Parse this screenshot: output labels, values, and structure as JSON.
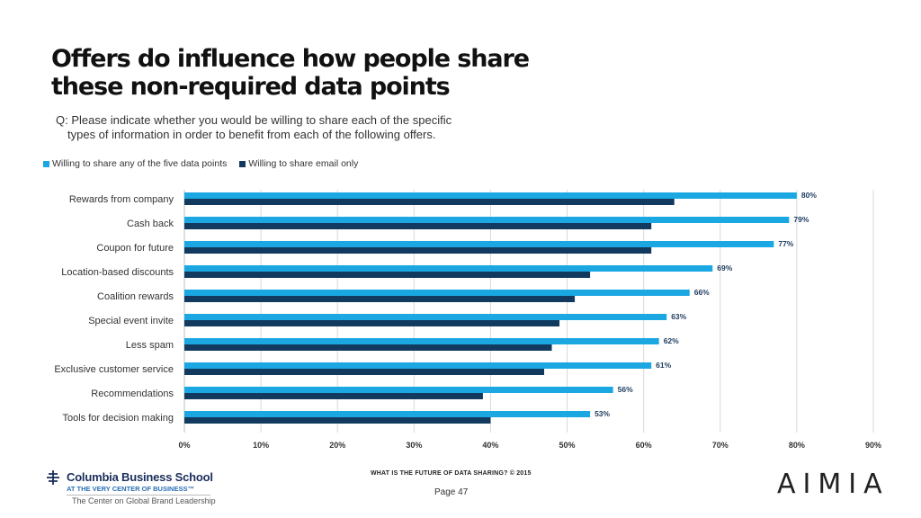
{
  "page": {
    "title_line1": "Offers do influence how people share",
    "title_line2": "these non-required data points",
    "question_line1": "Q: Please indicate whether you would be willing to share each of the specific",
    "question_line2": "types of information in order to benefit from each of the following offers."
  },
  "legend": {
    "series1": "Willing to share any of the five data points",
    "series2": "Willing to share email only"
  },
  "colors": {
    "series1": "#1ba7e2",
    "series2": "#123a5e",
    "label": "#1e3a5f",
    "grid": "#d9d9d9"
  },
  "chart_data": {
    "type": "bar",
    "orientation": "horizontal",
    "title": "Offers do influence how people share these non-required data points",
    "xlabel": "",
    "ylabel": "",
    "xlim": [
      0,
      90
    ],
    "x_ticks": [
      "0%",
      "10%",
      "20%",
      "30%",
      "40%",
      "50%",
      "60%",
      "70%",
      "80%",
      "90%"
    ],
    "grid": "vertical",
    "legend_position": "top-left",
    "categories": [
      "Rewards from company",
      "Cash back",
      "Coupon for future",
      "Location-based discounts",
      "Coalition rewards",
      "Special event invite",
      "Less spam",
      "Exclusive customer service",
      "Recommendations",
      "Tools for decision making"
    ],
    "series": [
      {
        "name": "Willing to share any of the five data points",
        "values": [
          80,
          79,
          77,
          69,
          66,
          63,
          62,
          61,
          56,
          53
        ],
        "labels": [
          "80%",
          "79%",
          "77%",
          "69%",
          "66%",
          "63%",
          "62%",
          "61%",
          "56%",
          "53%"
        ]
      },
      {
        "name": "Willing to share email only",
        "values": [
          64,
          61,
          61,
          53,
          51,
          49,
          48,
          47,
          39,
          40
        ]
      }
    ]
  },
  "footer": {
    "title": "WHAT IS THE FUTURE OF DATA SHARING?  © 2015",
    "page": "Page 47",
    "school_name": "Columbia Business School",
    "school_tagline": "AT THE VERY CENTER OF BUSINESS™",
    "center_name": "The Center on Global Brand Leadership",
    "partner_logo": "AIMIA"
  }
}
